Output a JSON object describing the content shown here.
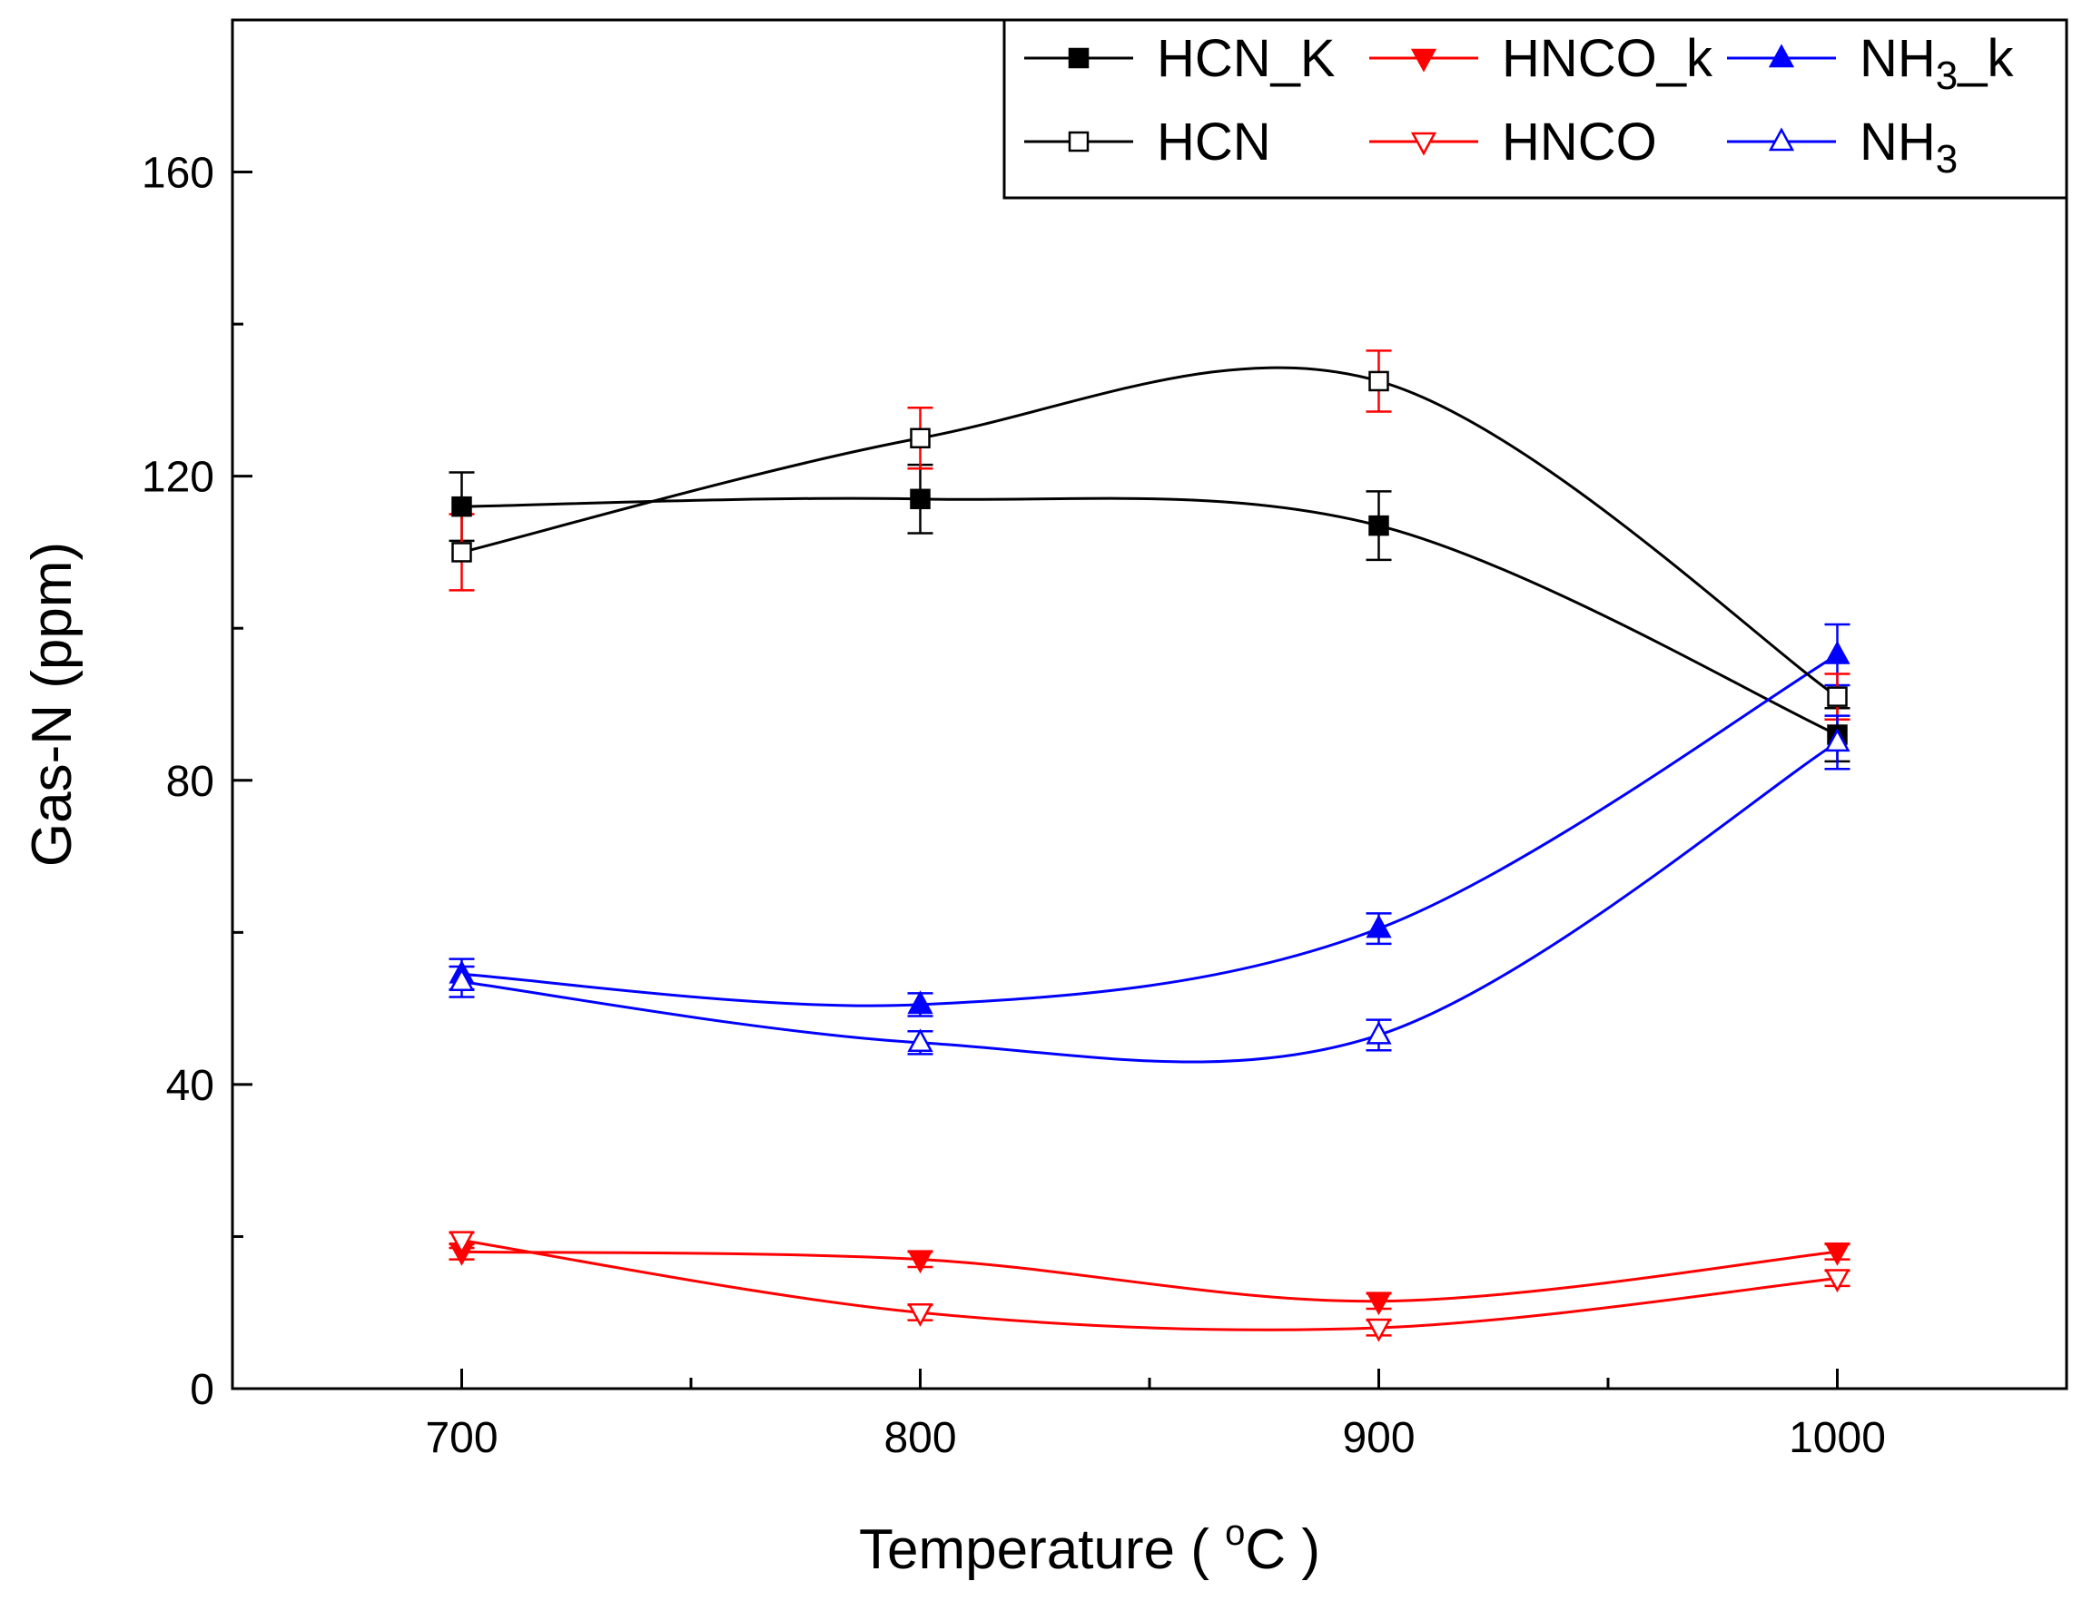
{
  "chart_data": {
    "type": "line",
    "title": "",
    "xlabel_main": "Temperature ( ",
    "xlabel_sup": "o",
    "xlabel_unit": "C )",
    "ylabel": "Gas-N (ppm)",
    "xlim": [
      650,
      1050
    ],
    "ylim": [
      0,
      180
    ],
    "xticks": [
      700,
      800,
      900,
      1000
    ],
    "yticks": [
      0,
      40,
      80,
      120,
      160
    ],
    "x": [
      700,
      800,
      900,
      1000
    ],
    "series": [
      {
        "name": "HCN_K",
        "name_base": "HCN_K",
        "name_sub": "",
        "name_suffix": "",
        "color": "#000000",
        "marker": "square",
        "filled": true,
        "values": [
          116,
          117,
          113.5,
          86
        ],
        "errors": [
          4.5,
          4.5,
          4.5,
          3.5
        ],
        "error_color": "#000000"
      },
      {
        "name": "HNCO_k",
        "name_base": "HNCO_k",
        "name_sub": "",
        "name_suffix": "",
        "color": "#ff0000",
        "marker": "triangle-down",
        "filled": true,
        "values": [
          18,
          17,
          11.5,
          18
        ],
        "errors": [
          1,
          1,
          1,
          1
        ],
        "error_color": "#ff0000"
      },
      {
        "name": "NH3_k",
        "name_base": "NH",
        "name_sub": "3",
        "name_suffix": "_k",
        "color": "#0000ff",
        "marker": "triangle-up",
        "filled": true,
        "values": [
          54.5,
          50.5,
          60.5,
          96.5
        ],
        "errors": [
          2,
          1.5,
          2,
          4
        ],
        "error_color": "#0000ff"
      },
      {
        "name": "HCN",
        "name_base": "HCN",
        "name_sub": "",
        "name_suffix": "",
        "color": "#000000",
        "marker": "square",
        "filled": false,
        "values": [
          110,
          125,
          132.5,
          91
        ],
        "errors": [
          5,
          4,
          4,
          3
        ],
        "error_color": "#ff0000"
      },
      {
        "name": "HNCO",
        "name_base": "HNCO",
        "name_sub": "",
        "name_suffix": "",
        "color": "#ff0000",
        "marker": "triangle-down",
        "filled": false,
        "values": [
          19.5,
          10,
          8,
          14.5
        ],
        "errors": [
          1,
          1,
          1,
          1
        ],
        "error_color": "#ff0000"
      },
      {
        "name": "NH3",
        "name_base": "NH",
        "name_sub": "3",
        "name_suffix": "",
        "color": "#0000ff",
        "marker": "triangle-up",
        "filled": false,
        "values": [
          53.5,
          45.5,
          46.5,
          85
        ],
        "errors": [
          2,
          1.5,
          2,
          3.5
        ],
        "error_color": "#0000ff"
      }
    ],
    "legend_position": "top-right",
    "grid": false
  }
}
